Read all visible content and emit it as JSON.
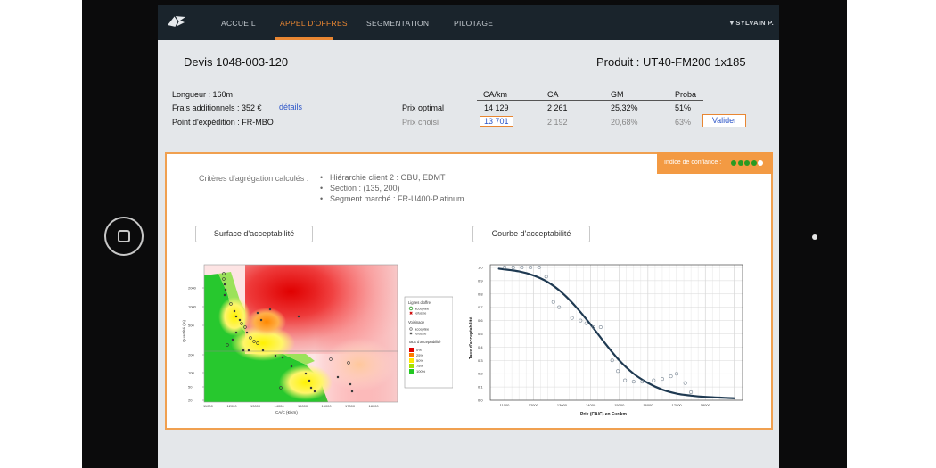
{
  "nav": {
    "items": [
      {
        "label": "ACCUEIL",
        "active": false
      },
      {
        "label": "APPEL D'OFFRES",
        "active": true
      },
      {
        "label": "SEGMENTATION",
        "active": false
      },
      {
        "label": "PILOTAGE",
        "active": false
      }
    ],
    "user": "▾  SYLVAIN P."
  },
  "header": {
    "quote": "Devis 1048-003-120",
    "product": "Produit : UT40-FM200 1x185"
  },
  "info": {
    "length": "Longueur : 160m",
    "fees": "Frais additionnels : 352 €",
    "details_link": "détails",
    "shipping": "Point d'expédition : FR-MBO"
  },
  "price_table": {
    "columns": [
      "CA/km",
      "CA",
      "GM",
      "Proba"
    ],
    "rows": [
      {
        "label": "Prix optimal",
        "values": [
          "14 129",
          "2 261",
          "25,32%",
          "51%"
        ]
      },
      {
        "label": "Prix choisi",
        "values": [
          "13 701",
          "2 192",
          "20,68%",
          "63%"
        ]
      }
    ],
    "validate_label": "Valider"
  },
  "panel": {
    "confidence_label": "Indice de confiance :",
    "confidence_level": 4,
    "confidence_max": 5,
    "criteria_label": "Critères d'agrégation calculés :",
    "criteria": [
      "Hiérarchie client 2 : OBU, EDMT",
      "Section : (135, 200)",
      "Segment marché : FR-U400-Platinum"
    ],
    "surface_button": "Surface d'acceptabilité",
    "curve_button": "Courbe d'acceptabilité"
  },
  "surface_chart": {
    "x_label": "CA/C (€/km)",
    "y_label": "Quantité (m)",
    "x_ticks": [
      "11000",
      "12000",
      "13000",
      "14000",
      "15000",
      "16000",
      "17000",
      "18000"
    ],
    "y_ticks": [
      "2000",
      "1000",
      "500",
      "200",
      "100",
      "50",
      "20"
    ],
    "legend": {
      "title1": "Lignes d'offre",
      "acceptee": "acceptée",
      "refusee": "refusée",
      "title2": "Voisinage",
      "title3": "Taux d'acceptabilité",
      "levels": [
        "0%",
        "25%",
        "50%",
        "75%",
        "100%"
      ],
      "level_colors": [
        "#e00000",
        "#ff7a00",
        "#ffe800",
        "#a6e000",
        "#22c822"
      ]
    }
  },
  "chart_data": {
    "type": "scatter",
    "title": "",
    "xlabel": "Prix (CA/C) en Eur/km",
    "ylabel": "Taux d'acceptabilité",
    "xlim": [
      10500,
      19300
    ],
    "ylim": [
      0,
      1.02
    ],
    "x_ticks": [
      11000,
      12000,
      13000,
      14000,
      15000,
      16000,
      17000,
      18000
    ],
    "y_ticks": [
      0.0,
      0.1,
      0.2,
      0.3,
      0.4,
      0.5,
      0.6,
      0.7,
      0.8,
      0.9,
      1.0
    ],
    "grid": true,
    "series": [
      {
        "kind": "points",
        "x": [
          11000,
          11300,
          11600,
          11900,
          12200,
          12450,
          12700,
          12900,
          13350,
          13650,
          13850,
          14100,
          14350,
          14750,
          14950,
          15200,
          15500,
          15800,
          16200,
          16500,
          16800,
          17000,
          17300,
          17500
        ],
        "y": [
          1.0,
          1.0,
          1.0,
          1.0,
          1.0,
          0.93,
          0.74,
          0.7,
          0.62,
          0.6,
          0.58,
          0.55,
          0.55,
          0.3,
          0.22,
          0.15,
          0.14,
          0.14,
          0.15,
          0.16,
          0.18,
          0.2,
          0.13,
          0.06
        ]
      },
      {
        "kind": "fit",
        "x": [
          10800,
          11500,
          12000,
          12500,
          13000,
          13500,
          14000,
          14500,
          15000,
          15500,
          16000,
          16500,
          17000,
          17500,
          18000,
          18500,
          19000
        ],
        "y": [
          0.99,
          0.97,
          0.94,
          0.89,
          0.81,
          0.7,
          0.57,
          0.43,
          0.3,
          0.2,
          0.13,
          0.08,
          0.05,
          0.035,
          0.025,
          0.02,
          0.015
        ]
      }
    ]
  }
}
